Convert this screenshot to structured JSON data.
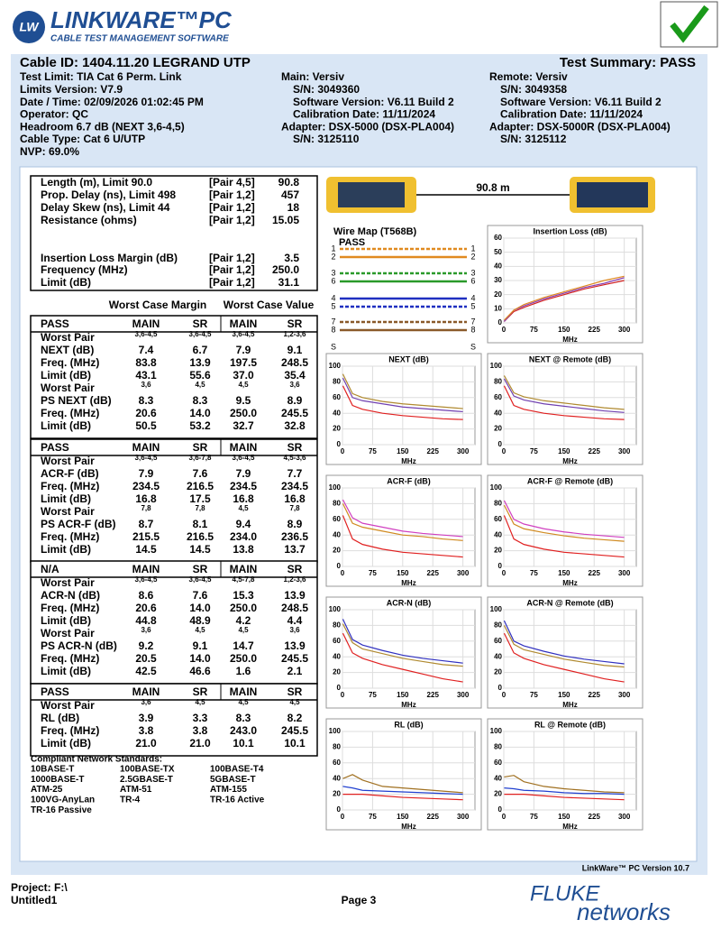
{
  "header": {
    "logo_badge": "LW",
    "product": "LINKWARE™PC",
    "tagline": "CABLE TEST MANAGEMENT SOFTWARE"
  },
  "summary": {
    "cable_id": "Cable ID: 1404.11.20 LEGRAND UTP",
    "result": "Test Summary: PASS",
    "info": [
      "Test Limit: TIA Cat 6 Perm. Link",
      "Limits Version: V7.9",
      "Date / Time: 02/09/2026  01:02:45 PM",
      "Operator: QC",
      "Headroom 6.7 dB (NEXT 3,6-4,5)",
      "Cable Type: Cat 6 U/UTP",
      "NVP: 69.0%"
    ],
    "main": [
      "Main: Versiv",
      "S/N: 3049360",
      "Software Version: V6.11 Build 2",
      "Calibration Date: 11/11/2024",
      "Adapter: DSX-5000 (DSX-PLA004)",
      "S/N: 3125110"
    ],
    "remote": [
      "Remote: Versiv",
      "S/N: 3049358",
      "Software Version: V6.11 Build 2",
      "Calibration Date: 11/11/2024",
      "Adapter: DSX-5000R (DSX-PLA004)",
      "S/N: 3125112"
    ]
  },
  "measurements": [
    {
      "label": "Length (m), Limit 90.0",
      "pair": "[Pair 4,5]",
      "value": "90.8"
    },
    {
      "label": "Prop. Delay (ns), Limit 498",
      "pair": "[Pair 1,2]",
      "value": "457"
    },
    {
      "label": "Delay Skew (ns), Limit 44",
      "pair": "[Pair 1,2]",
      "value": "18"
    },
    {
      "label": "Resistance (ohms)",
      "pair": "[Pair 1,2]",
      "value": "15.05"
    },
    {
      "label": "Insertion Loss Margin (dB)",
      "pair": "[Pair 1,2]",
      "value": "3.5"
    },
    {
      "label": "Frequency (MHz)",
      "pair": "[Pair 1,2]",
      "value": "250.0"
    },
    {
      "label": "Limit (dB)",
      "pair": "[Pair 1,2]",
      "value": "31.1"
    }
  ],
  "worst_case_headers": [
    "Worst Case Margin",
    "Worst Case Value"
  ],
  "tables": [
    {
      "status": "PASS",
      "columns": [
        "MAIN",
        "SR",
        "MAIN",
        "SR"
      ],
      "rows": [
        {
          "label": "Worst Pair",
          "values": [
            "3,6-4,5",
            "3,6-4,5",
            "3,6-4,5",
            "1,2-3,6"
          ]
        },
        {
          "label": "NEXT (dB)",
          "values": [
            "7.4",
            "6.7",
            "7.9",
            "9.1"
          ]
        },
        {
          "label": "Freq. (MHz)",
          "values": [
            "83.8",
            "13.9",
            "197.5",
            "248.5"
          ]
        },
        {
          "label": "Limit (dB)",
          "values": [
            "43.1",
            "55.6",
            "37.0",
            "35.4"
          ]
        },
        {
          "label": "Worst Pair",
          "values": [
            "3,6",
            "4,5",
            "4,5",
            "3,6"
          ]
        },
        {
          "label": "PS NEXT (dB)",
          "values": [
            "8.3",
            "8.3",
            "9.5",
            "8.9"
          ]
        },
        {
          "label": "Freq. (MHz)",
          "values": [
            "20.6",
            "14.0",
            "250.0",
            "245.5"
          ]
        },
        {
          "label": "Limit (dB)",
          "values": [
            "50.5",
            "53.2",
            "32.7",
            "32.8"
          ]
        }
      ]
    },
    {
      "status": "PASS",
      "columns": [
        "MAIN",
        "SR",
        "MAIN",
        "SR"
      ],
      "rows": [
        {
          "label": "Worst Pair",
          "values": [
            "3,6-4,5",
            "3,6-7,8",
            "3,6-4,5",
            "4,5-3,6"
          ]
        },
        {
          "label": "ACR-F (dB)",
          "values": [
            "7.9",
            "7.6",
            "7.9",
            "7.7"
          ]
        },
        {
          "label": "Freq. (MHz)",
          "values": [
            "234.5",
            "216.5",
            "234.5",
            "234.5"
          ]
        },
        {
          "label": "Limit (dB)",
          "values": [
            "16.8",
            "17.5",
            "16.8",
            "16.8"
          ]
        },
        {
          "label": "Worst Pair",
          "values": [
            "7,8",
            "7,8",
            "4,5",
            "7,8"
          ]
        },
        {
          "label": "PS ACR-F (dB)",
          "values": [
            "8.7",
            "8.1",
            "9.4",
            "8.9"
          ]
        },
        {
          "label": "Freq. (MHz)",
          "values": [
            "215.5",
            "216.5",
            "234.0",
            "236.5"
          ]
        },
        {
          "label": "Limit (dB)",
          "values": [
            "14.5",
            "14.5",
            "13.8",
            "13.7"
          ]
        }
      ]
    },
    {
      "status": "N/A",
      "columns": [
        "MAIN",
        "SR",
        "MAIN",
        "SR"
      ],
      "rows": [
        {
          "label": "Worst Pair",
          "values": [
            "3,6-4,5",
            "3,6-4,5",
            "4,5-7,8",
            "1,2-3,6"
          ]
        },
        {
          "label": "ACR-N (dB)",
          "values": [
            "8.6",
            "7.6",
            "15.3",
            "13.9"
          ]
        },
        {
          "label": "Freq. (MHz)",
          "values": [
            "20.6",
            "14.0",
            "250.0",
            "248.5"
          ]
        },
        {
          "label": "Limit (dB)",
          "values": [
            "44.8",
            "48.9",
            "4.2",
            "4.4"
          ]
        },
        {
          "label": "Worst Pair",
          "values": [
            "3,6",
            "4,5",
            "4,5",
            "3,6"
          ]
        },
        {
          "label": "PS ACR-N (dB)",
          "values": [
            "9.2",
            "9.1",
            "14.7",
            "13.9"
          ]
        },
        {
          "label": "Freq. (MHz)",
          "values": [
            "20.5",
            "14.0",
            "250.0",
            "245.5"
          ]
        },
        {
          "label": "Limit (dB)",
          "values": [
            "42.5",
            "46.6",
            "1.6",
            "2.1"
          ]
        }
      ]
    },
    {
      "status": "PASS",
      "columns": [
        "MAIN",
        "SR",
        "MAIN",
        "SR"
      ],
      "rows": [
        {
          "label": "Worst Pair",
          "values": [
            "3,6",
            "4,5",
            "4,5",
            "4,5"
          ]
        },
        {
          "label": "RL (dB)",
          "values": [
            "3.9",
            "3.3",
            "8.3",
            "8.2"
          ]
        },
        {
          "label": "Freq. (MHz)",
          "values": [
            "3.8",
            "3.8",
            "243.0",
            "245.5"
          ]
        },
        {
          "label": "Limit (dB)",
          "values": [
            "21.0",
            "21.0",
            "10.1",
            "10.1"
          ]
        }
      ]
    }
  ],
  "standards": {
    "title": "Compliant Network Standards:",
    "items": [
      "10BASE-T",
      "100BASE-TX",
      "100BASE-T4",
      "1000BASE-T",
      "2.5GBASE-T",
      "5GBASE-T",
      "ATM-25",
      "ATM-51",
      "ATM-155",
      "100VG-AnyLan",
      "TR-4",
      "TR-16 Active",
      "TR-16 Passive"
    ]
  },
  "cable_length_label": "90.8 m",
  "wire_map": {
    "title": "Wire Map (T568B)",
    "result": "PASS",
    "pins": [
      "1",
      "2",
      "3",
      "6",
      "4",
      "5",
      "7",
      "8",
      "S"
    ]
  },
  "charts": [
    {
      "title": "Insertion Loss (dB)",
      "xlabel": "MHz",
      "xlim": [
        0,
        330
      ],
      "xticks": [
        0,
        75,
        150,
        225,
        300
      ],
      "ylim": [
        0,
        60
      ],
      "yticks": [
        0,
        10,
        20,
        30,
        40,
        50,
        60
      ],
      "x": [
        1,
        25,
        50,
        100,
        150,
        200,
        250,
        300
      ],
      "series": [
        {
          "color": "#d02020",
          "values": [
            1,
            8,
            11,
            16,
            20,
            24,
            27,
            30
          ]
        },
        {
          "color": "#8a3fb0",
          "values": [
            1,
            9,
            12,
            17,
            21,
            25,
            28,
            32
          ]
        },
        {
          "color": "#e08a20",
          "values": [
            2,
            9,
            13,
            18,
            22,
            26,
            30,
            33
          ]
        }
      ]
    },
    {
      "title": "NEXT (dB)",
      "xlabel": "MHz",
      "xlim": [
        0,
        330
      ],
      "xticks": [
        0,
        75,
        150,
        225,
        300
      ],
      "ylim": [
        0,
        100
      ],
      "yticks": [
        0,
        20,
        40,
        60,
        80,
        100
      ],
      "x": [
        1,
        25,
        50,
        100,
        150,
        200,
        250,
        300
      ],
      "series": [
        {
          "color": "#e02020",
          "values": [
            75,
            50,
            45,
            40,
            37,
            35,
            33,
            32
          ]
        },
        {
          "color": "#b08a30",
          "values": [
            90,
            65,
            60,
            55,
            52,
            50,
            48,
            46
          ]
        },
        {
          "color": "#7040b0",
          "values": [
            85,
            60,
            56,
            52,
            48,
            46,
            44,
            42
          ]
        }
      ]
    },
    {
      "title": "NEXT @ Remote (dB)",
      "xlabel": "MHz",
      "xlim": [
        0,
        330
      ],
      "xticks": [
        0,
        75,
        150,
        225,
        300
      ],
      "ylim": [
        0,
        100
      ],
      "yticks": [
        0,
        20,
        40,
        60,
        80,
        100
      ],
      "x": [
        1,
        25,
        50,
        100,
        150,
        200,
        250,
        300
      ],
      "series": [
        {
          "color": "#e02020",
          "values": [
            75,
            50,
            45,
            40,
            37,
            35,
            33,
            32
          ]
        },
        {
          "color": "#b08a30",
          "values": [
            88,
            66,
            61,
            56,
            53,
            50,
            47,
            45
          ]
        },
        {
          "color": "#7040b0",
          "values": [
            84,
            62,
            57,
            52,
            49,
            46,
            43,
            41
          ]
        }
      ]
    },
    {
      "title": "ACR-F (dB)",
      "xlabel": "MHz",
      "xlim": [
        0,
        330
      ],
      "xticks": [
        0,
        75,
        150,
        225,
        300
      ],
      "ylim": [
        0,
        100
      ],
      "yticks": [
        0,
        20,
        40,
        60,
        80,
        100
      ],
      "x": [
        1,
        25,
        50,
        100,
        150,
        200,
        250,
        300
      ],
      "series": [
        {
          "color": "#e02020",
          "values": [
            65,
            35,
            28,
            22,
            18,
            16,
            14,
            12
          ]
        },
        {
          "color": "#d040c0",
          "values": [
            85,
            62,
            55,
            50,
            45,
            42,
            40,
            38
          ]
        },
        {
          "color": "#d08a20",
          "values": [
            80,
            55,
            50,
            45,
            40,
            38,
            35,
            33
          ]
        }
      ]
    },
    {
      "title": "ACR-F @ Remote (dB)",
      "xlabel": "MHz",
      "xlim": [
        0,
        330
      ],
      "xticks": [
        0,
        75,
        150,
        225,
        300
      ],
      "ylim": [
        0,
        100
      ],
      "yticks": [
        0,
        20,
        40,
        60,
        80,
        100
      ],
      "x": [
        1,
        25,
        50,
        100,
        150,
        200,
        250,
        300
      ],
      "series": [
        {
          "color": "#e02020",
          "values": [
            65,
            35,
            28,
            22,
            18,
            16,
            14,
            12
          ]
        },
        {
          "color": "#d040c0",
          "values": [
            84,
            60,
            54,
            48,
            44,
            41,
            39,
            37
          ]
        },
        {
          "color": "#d08a20",
          "values": [
            78,
            54,
            48,
            43,
            39,
            36,
            34,
            32
          ]
        }
      ]
    },
    {
      "title": "ACR-N (dB)",
      "xlabel": "MHz",
      "xlim": [
        0,
        330
      ],
      "xticks": [
        0,
        75,
        150,
        225,
        300
      ],
      "ylim": [
        0,
        100
      ],
      "yticks": [
        0,
        20,
        40,
        60,
        80,
        100
      ],
      "x": [
        1,
        25,
        50,
        100,
        150,
        200,
        250,
        300
      ],
      "series": [
        {
          "color": "#e02020",
          "values": [
            70,
            45,
            38,
            30,
            24,
            18,
            12,
            8
          ]
        },
        {
          "color": "#3030c0",
          "values": [
            88,
            62,
            55,
            48,
            42,
            38,
            35,
            32
          ]
        },
        {
          "color": "#b08a30",
          "values": [
            82,
            58,
            50,
            44,
            38,
            34,
            30,
            28
          ]
        }
      ]
    },
    {
      "title": "ACR-N @ Remote (dB)",
      "xlabel": "MHz",
      "xlim": [
        0,
        330
      ],
      "xticks": [
        0,
        75,
        150,
        225,
        300
      ],
      "ylim": [
        0,
        100
      ],
      "yticks": [
        0,
        20,
        40,
        60,
        80,
        100
      ],
      "x": [
        1,
        25,
        50,
        100,
        150,
        200,
        250,
        300
      ],
      "series": [
        {
          "color": "#e02020",
          "values": [
            70,
            45,
            38,
            30,
            24,
            18,
            12,
            8
          ]
        },
        {
          "color": "#3030c0",
          "values": [
            86,
            60,
            54,
            47,
            41,
            37,
            34,
            31
          ]
        },
        {
          "color": "#b08a30",
          "values": [
            80,
            56,
            49,
            43,
            37,
            33,
            29,
            27
          ]
        }
      ]
    },
    {
      "title": "RL (dB)",
      "xlabel": "MHz",
      "xlim": [
        0,
        330
      ],
      "xticks": [
        0,
        75,
        150,
        225,
        300
      ],
      "ylim": [
        0,
        100
      ],
      "yticks": [
        0,
        20,
        40,
        60,
        80,
        100
      ],
      "x": [
        1,
        25,
        50,
        100,
        150,
        200,
        250,
        300
      ],
      "series": [
        {
          "color": "#e02020",
          "values": [
            20,
            20,
            20,
            18,
            16,
            15,
            14,
            13
          ]
        },
        {
          "color": "#a07020",
          "values": [
            40,
            45,
            38,
            30,
            28,
            26,
            24,
            22
          ]
        },
        {
          "color": "#2040d0",
          "values": [
            30,
            28,
            25,
            24,
            23,
            22,
            21,
            20
          ]
        }
      ]
    },
    {
      "title": "RL @ Remote (dB)",
      "xlabel": "MHz",
      "xlim": [
        0,
        330
      ],
      "xticks": [
        0,
        75,
        150,
        225,
        300
      ],
      "ylim": [
        0,
        100
      ],
      "yticks": [
        0,
        20,
        40,
        60,
        80,
        100
      ],
      "x": [
        1,
        25,
        50,
        100,
        150,
        200,
        250,
        300
      ],
      "series": [
        {
          "color": "#e02020",
          "values": [
            20,
            20,
            20,
            18,
            16,
            15,
            14,
            13
          ]
        },
        {
          "color": "#a07020",
          "values": [
            42,
            44,
            36,
            30,
            27,
            25,
            23,
            22
          ]
        },
        {
          "color": "#2040d0",
          "values": [
            28,
            27,
            25,
            24,
            22,
            21,
            21,
            20
          ]
        }
      ]
    }
  ],
  "footer": {
    "version": "LinkWare™ PC Version 10.7",
    "project": "Project: F:\\",
    "file": "Untitled1",
    "page": "Page 3",
    "brand_top": "FLUKE",
    "brand_bottom": "networks"
  }
}
